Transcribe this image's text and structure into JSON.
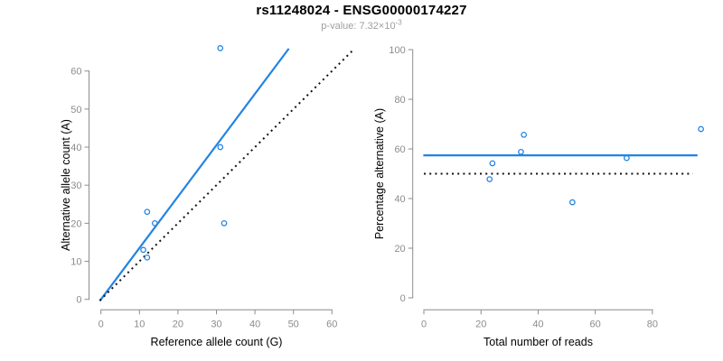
{
  "title": "rs11248024 - ENSG00000174227",
  "subtitle": {
    "base": "p-value: 7.32×10",
    "exponent": "-3"
  },
  "colors": {
    "accent_blue": "#2383e2",
    "axis_gray": "#8c8c8c",
    "tick_label_gray": "#8c8c8c",
    "dotted_black": "#111111",
    "text_black": "#000000",
    "subtitle_gray": "#9e9e9e"
  },
  "chart_data": [
    {
      "type": "scatter",
      "name": "allele-counts-scatter",
      "xlabel": "Reference allele count (G)",
      "ylabel": "Alternative allele count (A)",
      "xticks": [
        0,
        10,
        20,
        30,
        40,
        50,
        60
      ],
      "yticks": [
        0,
        10,
        20,
        30,
        40,
        50,
        60
      ],
      "xlim": [
        -2.6,
        68.6
      ],
      "ylim": [
        -2.6,
        68.6
      ],
      "grid": false,
      "legend": "none",
      "points": [
        [
          12,
          23
        ],
        [
          14,
          20
        ],
        [
          11,
          13
        ],
        [
          12,
          11
        ],
        [
          32,
          20
        ],
        [
          31,
          40
        ],
        [
          31,
          66
        ]
      ],
      "lines": [
        {
          "name": "fit-line",
          "slope": 1.35,
          "intercept": 0,
          "x_range": [
            -0.3,
            48.8
          ],
          "style": "solid",
          "color_key": "accent_blue"
        },
        {
          "name": "identity-line",
          "slope": 1,
          "intercept": 0,
          "x_range": [
            -0.3,
            65.2
          ],
          "style": "dotted",
          "color_key": "dotted_black"
        }
      ]
    },
    {
      "type": "scatter",
      "name": "percentage-vs-reads-scatter",
      "xlabel": "Total number of reads",
      "ylabel": "Percentage alternative (A)",
      "xticks": [
        0,
        20,
        40,
        60,
        80
      ],
      "yticks": [
        0,
        20,
        40,
        60,
        80,
        100
      ],
      "xlim": [
        -3.8,
        97.5
      ],
      "ylim": [
        -4.8,
        101
      ],
      "grid": false,
      "legend": "none",
      "points": [
        [
          35,
          65.7
        ],
        [
          34,
          58.8
        ],
        [
          24,
          54.2
        ],
        [
          23,
          47.8
        ],
        [
          52,
          38.5
        ],
        [
          71,
          56.3
        ],
        [
          97,
          68.0
        ]
      ],
      "lines": [
        {
          "name": "mean-line",
          "slope": 0,
          "intercept": 57.4,
          "x_range": [
            -0.2,
            95.8
          ],
          "style": "solid",
          "color_key": "accent_blue"
        },
        {
          "name": "reference-line",
          "slope": 0,
          "intercept": 50,
          "x_range": [
            0,
            94.2
          ],
          "style": "dotted",
          "color_key": "dotted_black"
        }
      ]
    }
  ]
}
